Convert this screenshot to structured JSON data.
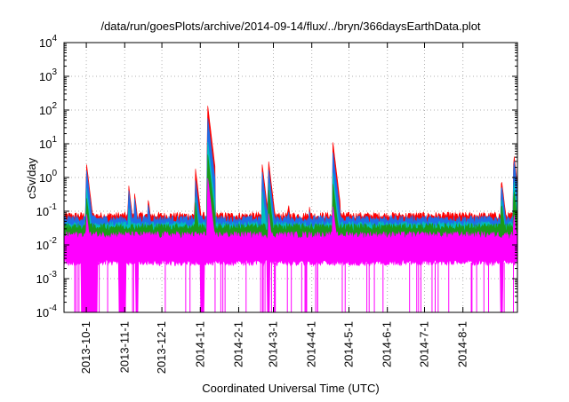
{
  "chart_data": {
    "type": "line",
    "title": "/data/run/goesPlots/archive/2014-09-14/flux/../bryn/366daysEarthData.plot",
    "xlabel": "Coordinated Universal Time (UTC)",
    "ylabel": "cSv/day",
    "y_scale": "log",
    "ylim": [
      0.0001,
      10000
    ],
    "y_ticks": [
      {
        "value": 0.0001,
        "base": "10",
        "exp": "-4"
      },
      {
        "value": 0.001,
        "base": "10",
        "exp": "-3"
      },
      {
        "value": 0.01,
        "base": "10",
        "exp": "-2"
      },
      {
        "value": 0.1,
        "base": "10",
        "exp": "-1"
      },
      {
        "value": 1,
        "base": "10",
        "exp": "0"
      },
      {
        "value": 10,
        "base": "10",
        "exp": "1"
      },
      {
        "value": 100,
        "base": "10",
        "exp": "2"
      },
      {
        "value": 1000,
        "base": "10",
        "exp": "3"
      },
      {
        "value": 10000,
        "base": "10",
        "exp": "4"
      }
    ],
    "xlim": [
      "2013-09-13",
      "2014-09-14"
    ],
    "x_ticks": [
      "2013-10-1",
      "2013-11-1",
      "2013-12-1",
      "2014-1-1",
      "2014-2-1",
      "2014-3-1",
      "2014-4-1",
      "2014-5-1",
      "2014-6-1",
      "2014-7-1",
      "2014-8-1"
    ],
    "grid": true,
    "legend": "none",
    "series": [
      {
        "color": "#ff0000",
        "baseline": 0.075,
        "spikes": [
          [
            "2013-10-1",
            3
          ],
          [
            "2013-11-4",
            0.7
          ],
          [
            "2013-11-9",
            0.35
          ],
          [
            "2013-11-20",
            0.25
          ],
          [
            "2013-12-28",
            2
          ],
          [
            "2014-1-7",
            140
          ],
          [
            "2014-2-20",
            2.5
          ],
          [
            "2014-2-25",
            3.5
          ],
          [
            "2014-3-13",
            0.2
          ],
          [
            "2014-3-30",
            0.15
          ],
          [
            "2014-4-18",
            12
          ],
          [
            "2014-9-1",
            1.0
          ],
          [
            "2014-9-11",
            5.5
          ]
        ]
      },
      {
        "color": "#1e6fe8",
        "baseline": 0.06,
        "spikes": [
          [
            "2013-10-1",
            2
          ],
          [
            "2013-11-4",
            0.5
          ],
          [
            "2013-11-9",
            0.25
          ],
          [
            "2013-11-20",
            0.18
          ],
          [
            "2013-12-28",
            0.9
          ],
          [
            "2014-1-7",
            60
          ],
          [
            "2014-2-20",
            1.5
          ],
          [
            "2014-2-25",
            2
          ],
          [
            "2014-3-13",
            0.13
          ],
          [
            "2014-3-30",
            0.11
          ],
          [
            "2014-4-18",
            6
          ],
          [
            "2014-9-1",
            0.7
          ],
          [
            "2014-9-11",
            4
          ]
        ]
      },
      {
        "color": "#00bfbf",
        "baseline": 0.04,
        "spikes": [
          [
            "2013-10-1",
            0.6
          ],
          [
            "2013-11-4",
            0.15
          ],
          [
            "2013-12-28",
            0.3
          ],
          [
            "2014-1-7",
            12
          ],
          [
            "2014-2-20",
            0.4
          ],
          [
            "2014-2-25",
            0.8
          ],
          [
            "2014-4-18",
            1.5
          ],
          [
            "2014-9-1",
            0.3
          ],
          [
            "2014-9-11",
            1
          ]
        ]
      },
      {
        "color": "#1a9a1a",
        "baseline": 0.035,
        "spikes": [
          [
            "2013-10-1",
            0.3
          ],
          [
            "2013-12-28",
            0.2
          ],
          [
            "2014-1-7",
            5
          ],
          [
            "2014-2-25",
            0.5
          ],
          [
            "2014-4-18",
            0.7
          ],
          [
            "2014-9-1",
            0.2
          ],
          [
            "2014-9-11",
            0.5
          ]
        ]
      },
      {
        "color": "#ff00ff",
        "baseline": 0.02,
        "floor": 0.003,
        "spikes": [
          [
            "2013-10-1",
            0.1
          ],
          [
            "2014-1-7",
            1
          ],
          [
            "2014-2-25",
            0.1
          ],
          [
            "2014-4-18",
            0.15
          ],
          [
            "2014-9-11",
            0.1
          ]
        ],
        "dropouts": [
          [
            "2013-9-27",
            "2013-10-10"
          ],
          [
            "2013-10-27",
            "2013-11-2"
          ],
          [
            "2013-11-10",
            "2013-11-12"
          ],
          [
            "2014-1-1",
            "2014-1-4"
          ],
          [
            "2014-2-24",
            "2014-2-26"
          ],
          [
            "2014-8-31",
            "2014-9-2"
          ]
        ]
      }
    ]
  }
}
